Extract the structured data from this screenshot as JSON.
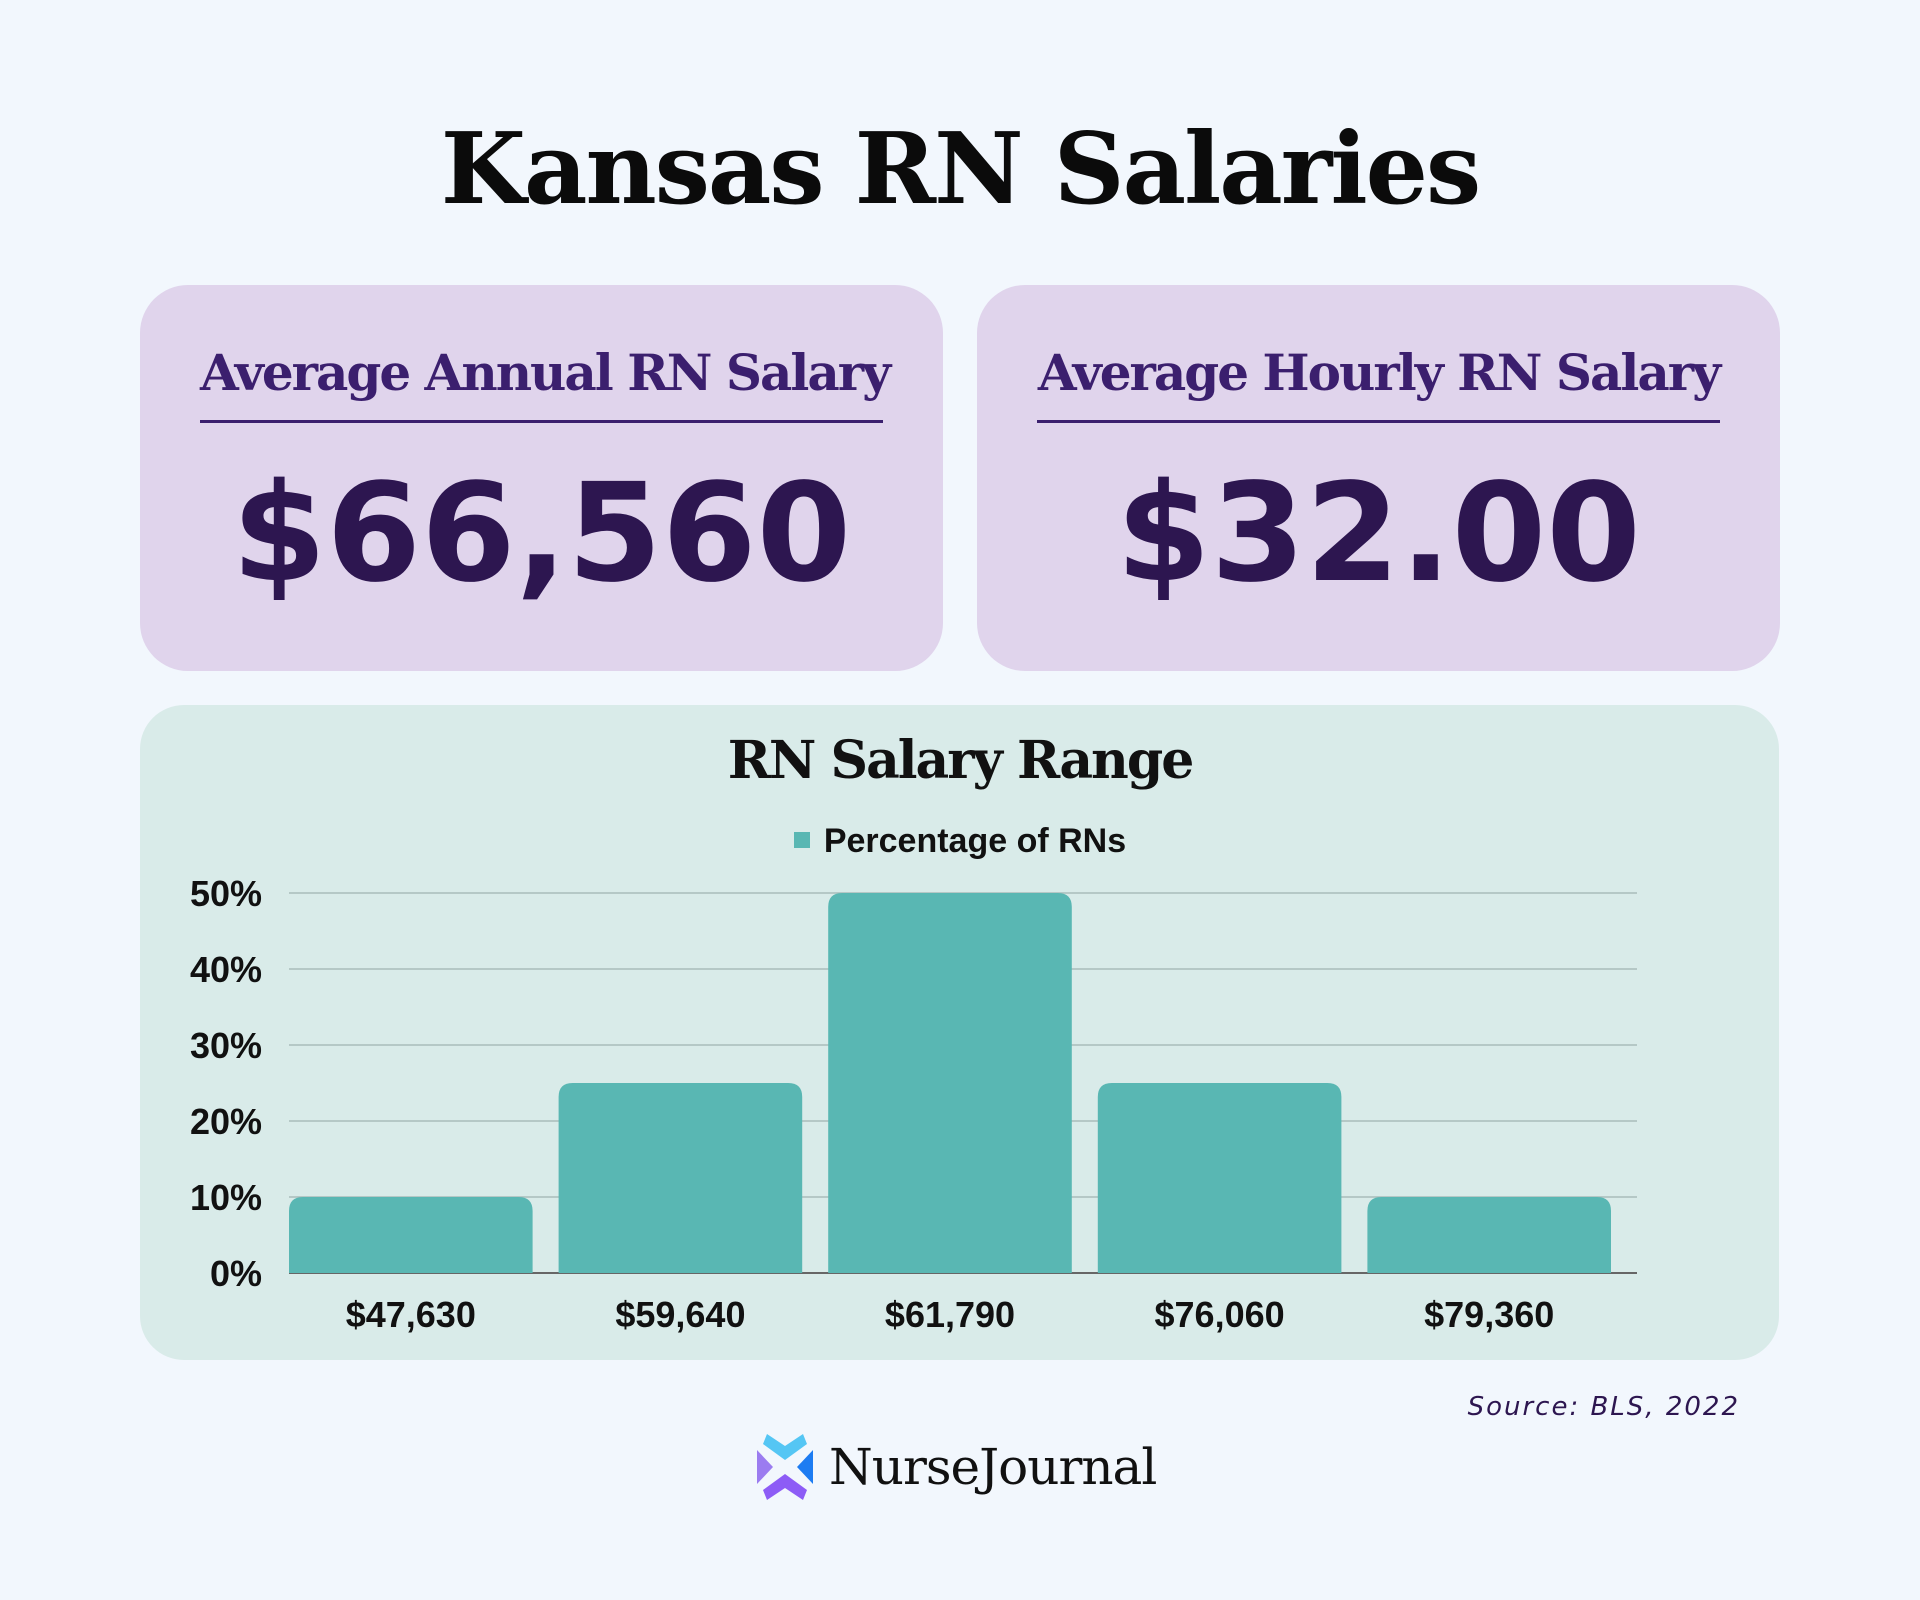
{
  "title": "Kansas RN Salaries",
  "cards": [
    {
      "label": "Average Annual RN Salary",
      "value": "$66,560"
    },
    {
      "label": "Average Hourly RN Salary",
      "value": "$32.00"
    }
  ],
  "chart_data": {
    "type": "bar",
    "title": "RN Salary Range",
    "legend": "Percentage of RNs",
    "legend_position": "top-center",
    "categories": [
      "$47,630",
      "$59,640",
      "$61,790",
      "$76,060",
      "$79,360"
    ],
    "values": [
      10,
      25,
      50,
      25,
      10
    ],
    "yticks": [
      "0%",
      "10%",
      "20%",
      "30%",
      "40%",
      "50%"
    ],
    "ylim": [
      0,
      50
    ],
    "grid": true,
    "color": "#59b7b3"
  },
  "source": "Source: BLS, 2022",
  "logo": "NurseJournal"
}
